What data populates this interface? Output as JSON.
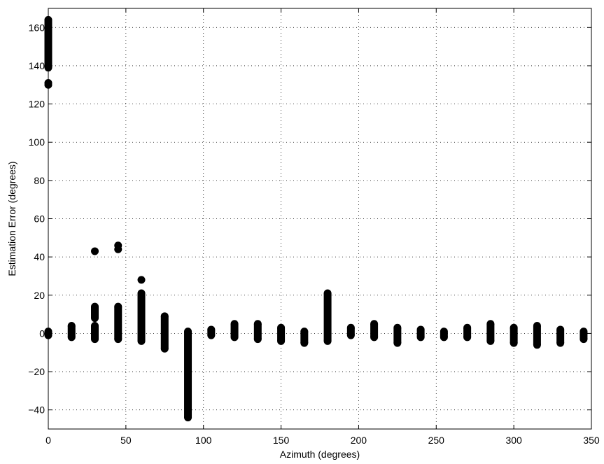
{
  "chart_data": {
    "type": "scatter",
    "title": "",
    "xlabel": "Azimuth (degrees)",
    "ylabel": "Estimation Error (degrees)",
    "xlim": [
      0,
      350
    ],
    "ylim": [
      -50,
      170
    ],
    "xticks": [
      0,
      50,
      100,
      150,
      200,
      250,
      300,
      350
    ],
    "yticks": [
      -40,
      -20,
      0,
      20,
      40,
      60,
      80,
      100,
      120,
      140,
      160
    ],
    "grid": true,
    "legend": "none",
    "marker_color": "#000000",
    "columns": [
      {
        "x": 0,
        "y_min": -1,
        "y_max": 1
      },
      {
        "x": 0,
        "y_min": 139,
        "y_max": 164
      },
      {
        "x": 15,
        "y_min": -2,
        "y_max": 4
      },
      {
        "x": 30,
        "y_min": -3,
        "y_max": 4
      },
      {
        "x": 30,
        "y_min": 8,
        "y_max": 14
      },
      {
        "x": 45,
        "y_min": -3,
        "y_max": 14
      },
      {
        "x": 60,
        "y_min": -4,
        "y_max": 21
      },
      {
        "x": 75,
        "y_min": -8,
        "y_max": 9
      },
      {
        "x": 90,
        "y_min": -44,
        "y_max": 1
      },
      {
        "x": 105,
        "y_min": -1,
        "y_max": 2
      },
      {
        "x": 120,
        "y_min": -2,
        "y_max": 5
      },
      {
        "x": 135,
        "y_min": -3,
        "y_max": 5
      },
      {
        "x": 150,
        "y_min": -4,
        "y_max": 3
      },
      {
        "x": 165,
        "y_min": -5,
        "y_max": 1
      },
      {
        "x": 180,
        "y_min": -4,
        "y_max": 21
      },
      {
        "x": 195,
        "y_min": -1,
        "y_max": 3
      },
      {
        "x": 210,
        "y_min": -2,
        "y_max": 5
      },
      {
        "x": 225,
        "y_min": -5,
        "y_max": 3
      },
      {
        "x": 240,
        "y_min": -2,
        "y_max": 2
      },
      {
        "x": 255,
        "y_min": -2,
        "y_max": 1
      },
      {
        "x": 270,
        "y_min": -2,
        "y_max": 3
      },
      {
        "x": 285,
        "y_min": -4,
        "y_max": 5
      },
      {
        "x": 300,
        "y_min": -5,
        "y_max": 3
      },
      {
        "x": 315,
        "y_min": -6,
        "y_max": 4
      },
      {
        "x": 330,
        "y_min": -5,
        "y_max": 2
      },
      {
        "x": 345,
        "y_min": -3,
        "y_max": 1
      }
    ],
    "points": [
      {
        "x": 0,
        "y": 130
      },
      {
        "x": 0,
        "y": 131
      },
      {
        "x": 30,
        "y": 43
      },
      {
        "x": 45,
        "y": 44
      },
      {
        "x": 45,
        "y": 46
      },
      {
        "x": 60,
        "y": 28
      }
    ]
  }
}
